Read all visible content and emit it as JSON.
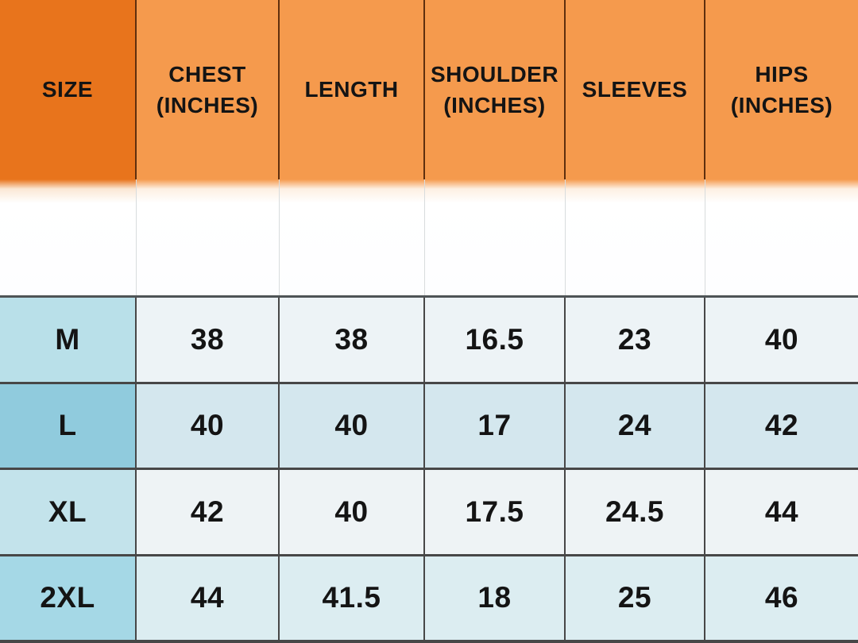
{
  "chart_data": {
    "type": "table",
    "columns": [
      "SIZE",
      "CHEST (INCHES)",
      "LENGTH",
      "SHOULDER (INCHES)",
      "SLEEVES",
      "HIPS (INCHES)"
    ],
    "rows": [
      [
        "M",
        "38",
        "38",
        "16.5",
        "23",
        "40"
      ],
      [
        "L",
        "40",
        "40",
        "17",
        "24",
        "42"
      ],
      [
        "XL",
        "42",
        "40",
        "17.5",
        "24.5",
        "44"
      ],
      [
        "2XL",
        "44",
        "41.5",
        "18",
        "25",
        "46"
      ]
    ]
  },
  "colors": {
    "header_size_bg": "#e8741c",
    "header_bg": "#f59a4d",
    "header_border": "#5f2f0e",
    "grid_border": "#474747",
    "text": "#141414",
    "row_m_size": "#b9e0e9",
    "row_m_value": "#edf3f6",
    "row_l_size": "#90cbdd",
    "row_l_value": "#d4e7ee",
    "row_xl_size": "#c3e3eb",
    "row_xl_value": "#eef3f5",
    "row_2xl_size": "#a5d8e6",
    "row_2xl_value": "#dcedf1"
  }
}
